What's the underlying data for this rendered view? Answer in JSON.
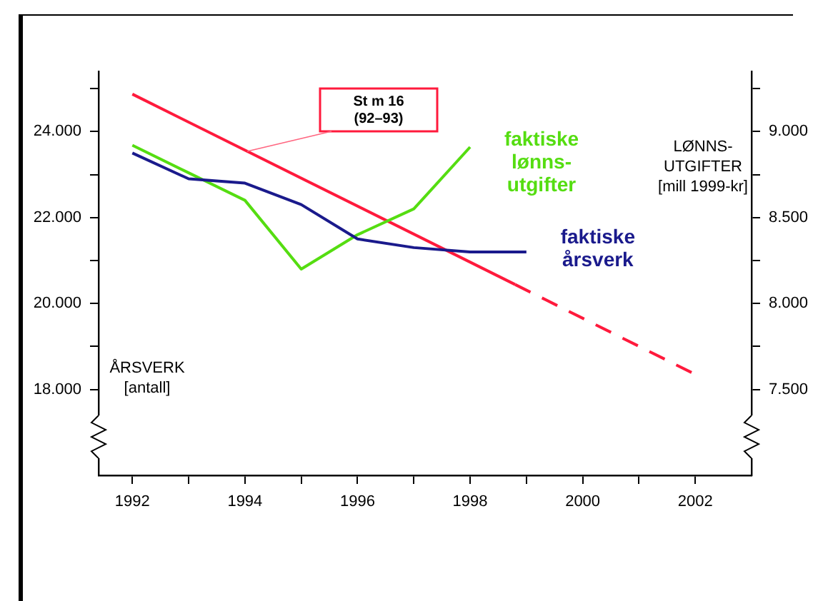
{
  "chart_data": {
    "type": "line",
    "xlabel": null,
    "ylabel": "ÅRSVERK [antall]",
    "y2label": "LØNNS-UTGIFTER [mill 1999-kr]",
    "x": [
      1992,
      1993,
      1994,
      1995,
      1996,
      1997,
      1998,
      1999
    ],
    "series": [
      {
        "name": "faktiske årsverk",
        "color": "#1a1a8c",
        "values": [
          23500,
          22900,
          22800,
          22300,
          21500,
          21300,
          21200,
          21200
        ]
      },
      {
        "name": "faktiske lønns-utgifter",
        "color": "#55dd11",
        "axis": "y2",
        "x": [
          1992,
          1993,
          1994,
          1995,
          1996,
          1997,
          1998
        ],
        "values": [
          8920,
          8760,
          8600,
          8200,
          8400,
          8550,
          8910
        ]
      },
      {
        "color": "#ff1a3c",
        "x": [
          1992,
          1998.8
        ],
        "values": [
          24870,
          20440
        ],
        "line_style": "solid"
      },
      {
        "color": "#ff1a3c",
        "x": [
          1998.8,
          2002
        ],
        "values": [
          20440,
          18350
        ],
        "line_style": "dashed"
      }
    ],
    "xlim": [
      1991.4,
      2003
    ],
    "xticks": [
      1992,
      {
        "value": 1993,
        "label": null
      },
      1994,
      {
        "value": 1995,
        "label": null
      },
      1996,
      {
        "value": 1997,
        "label": null
      },
      1998,
      {
        "value": 1999,
        "label": null
      },
      2000,
      {
        "value": 2001,
        "label": null
      },
      2002
    ],
    "ylim": [
      16000,
      25400
    ],
    "yticks": [
      {
        "value": 18000,
        "label": "18.000"
      },
      {
        "value": 19000,
        "label": null
      },
      {
        "value": 20000,
        "label": "20.000"
      },
      {
        "value": 21000,
        "label": null
      },
      {
        "value": 22000,
        "label": "22.000"
      },
      {
        "value": 23000,
        "label": null
      },
      {
        "value": 24000,
        "label": "24.000"
      },
      {
        "value": 25000,
        "label": null
      }
    ],
    "y2lim": [
      7000,
      9350
    ],
    "y2ticks": [
      {
        "value": 7500,
        "label": "7.500"
      },
      {
        "value": 7750,
        "label": null
      },
      {
        "value": 8000,
        "label": "8.000"
      },
      {
        "value": 8250,
        "label": null
      },
      {
        "value": 8500,
        "label": "8.500"
      },
      {
        "value": 8750,
        "label": null
      },
      {
        "value": 9000,
        "label": "9.000"
      },
      {
        "value": 9250,
        "label": null
      }
    ],
    "annotations": [
      "St m 16 (92–93)"
    ],
    "grid": false,
    "legend": false,
    "marker": "none"
  }
}
